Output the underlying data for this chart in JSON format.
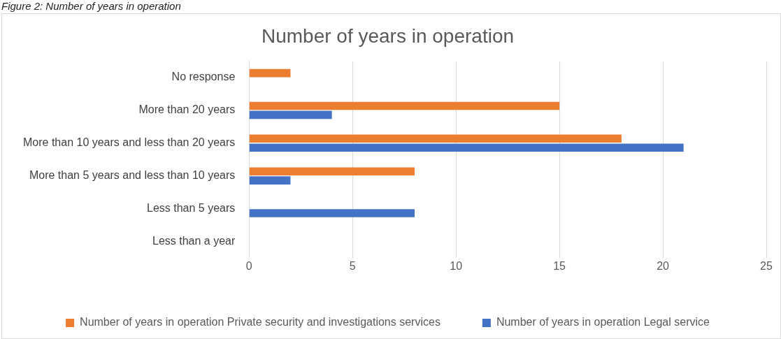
{
  "chart_data": {
    "type": "bar",
    "orientation": "horizontal",
    "title": "Number of years in operation",
    "annotations": [
      "Figure 2: Number of years in operation"
    ],
    "categories": [
      "No response",
      "More than 20 years",
      "More than 10 years and less than 20 years",
      "More than 5 years and less than 10 years",
      "Less than 5 years",
      "Less than a year"
    ],
    "series": [
      {
        "name": "Number of years in operation Private security and investigations services",
        "color": "#ed7d31",
        "values": [
          2,
          15,
          18,
          8,
          0,
          0
        ]
      },
      {
        "name": "Number of years in operation Legal service",
        "color": "#4472c4",
        "values": [
          0,
          4,
          21,
          2,
          8,
          0
        ]
      }
    ],
    "xlim": [
      0,
      25
    ],
    "xticks": [
      0,
      5,
      10,
      15,
      20,
      25
    ],
    "grid": "x",
    "legend": "bottom"
  }
}
